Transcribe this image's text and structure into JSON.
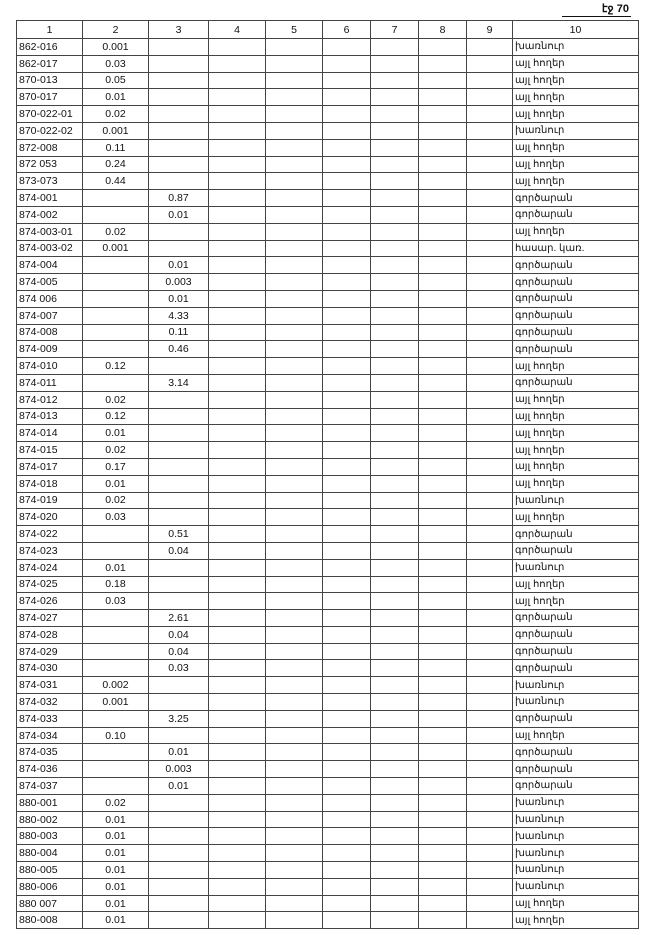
{
  "page_label": "էջ 70",
  "columns": [
    "1",
    "2",
    "3",
    "4",
    "5",
    "6",
    "7",
    "8",
    "9",
    "10"
  ],
  "rows": [
    [
      "862-016",
      "0.001",
      "",
      "խառնուր"
    ],
    [
      "862-017",
      "0.03",
      "",
      "այլ հողեր"
    ],
    [
      "870-013",
      "0.05",
      "",
      "այլ հողեր"
    ],
    [
      "870-017",
      "0.01",
      "",
      "այլ հողեր"
    ],
    [
      "870-022-01",
      "0.02",
      "",
      "այլ հողեր"
    ],
    [
      "870-022-02",
      "0.001",
      "",
      "խառնուր"
    ],
    [
      "872-008",
      "0.11",
      "",
      "այլ հողեր"
    ],
    [
      "872 053",
      "0.24",
      "",
      "այլ հողեր"
    ],
    [
      "873-073",
      "0.44",
      "",
      "այլ հողեր"
    ],
    [
      "874-001",
      "",
      "0.87",
      "գործարան"
    ],
    [
      "874-002",
      "",
      "0.01",
      "գործարան"
    ],
    [
      "874-003-01",
      "0.02",
      "",
      "այլ հողեր"
    ],
    [
      "874-003-02",
      "0.001",
      "",
      "հասար. կառ."
    ],
    [
      "874-004",
      "",
      "0.01",
      "գործարան"
    ],
    [
      "874-005",
      "",
      "0.003",
      "գործարան"
    ],
    [
      "874 006",
      "",
      "0.01",
      "գործարան"
    ],
    [
      "874-007",
      "",
      "4.33",
      "գործարան"
    ],
    [
      "874-008",
      "",
      "0.11",
      "գործարան"
    ],
    [
      "874-009",
      "",
      "0.46",
      "գործարան"
    ],
    [
      "874-010",
      "0.12",
      "",
      "այլ հողեր"
    ],
    [
      "874-011",
      "",
      "3.14",
      "գործարան"
    ],
    [
      "874-012",
      "0.02",
      "",
      "այլ հողեր"
    ],
    [
      "874-013",
      "0.12",
      "",
      "այլ հողեր"
    ],
    [
      "874-014",
      "0.01",
      "",
      "այլ հողեր"
    ],
    [
      "874-015",
      "0.02",
      "",
      "այլ հողեր"
    ],
    [
      "874-017",
      "0.17",
      "",
      "այլ հողեր"
    ],
    [
      "874-018",
      "0.01",
      "",
      "այլ հողեր"
    ],
    [
      "874-019",
      "0.02",
      "",
      "խառնուր"
    ],
    [
      "874-020",
      "0.03",
      "",
      "այլ հողեր"
    ],
    [
      "874-022",
      "",
      "0.51",
      "գործարան"
    ],
    [
      "874-023",
      "",
      "0.04",
      "գործարան"
    ],
    [
      "874-024",
      "0.01",
      "",
      "խառնուր"
    ],
    [
      "874-025",
      "0.18",
      "",
      "այլ հողեր"
    ],
    [
      "874-026",
      "0.03",
      "",
      "այլ հողեր"
    ],
    [
      "874-027",
      "",
      "2.61",
      "գործարան"
    ],
    [
      "874-028",
      "",
      "0.04",
      "գործարան"
    ],
    [
      "874-029",
      "",
      "0.04",
      "գործարան"
    ],
    [
      "874-030",
      "",
      "0.03",
      "գործարան"
    ],
    [
      "874-031",
      "0.002",
      "",
      "խառնուր"
    ],
    [
      "874-032",
      "0.001",
      "",
      "խառնուր"
    ],
    [
      "874-033",
      "",
      "3.25",
      "գործարան"
    ],
    [
      "874-034",
      "0.10",
      "",
      "այլ հողեր"
    ],
    [
      "874-035",
      "",
      "0.01",
      "գործարան"
    ],
    [
      "874-036",
      "",
      "0.003",
      "գործարան"
    ],
    [
      "874-037",
      "",
      "0.01",
      "գործարան"
    ],
    [
      "880-001",
      "0.02",
      "",
      "խառնուր"
    ],
    [
      "880-002",
      "0.01",
      "",
      "խառնուր"
    ],
    [
      "880-003",
      "0.01",
      "",
      "խառնուր"
    ],
    [
      "880-004",
      "0.01",
      "",
      "խառնուր"
    ],
    [
      "880-005",
      "0.01",
      "",
      "խառնուր"
    ],
    [
      "880-006",
      "0.01",
      "",
      "խառնուր"
    ],
    [
      "880 007",
      "0.01",
      "",
      "այլ հողեր"
    ],
    [
      "880-008",
      "0.01",
      "",
      "այլ հողեր"
    ]
  ]
}
